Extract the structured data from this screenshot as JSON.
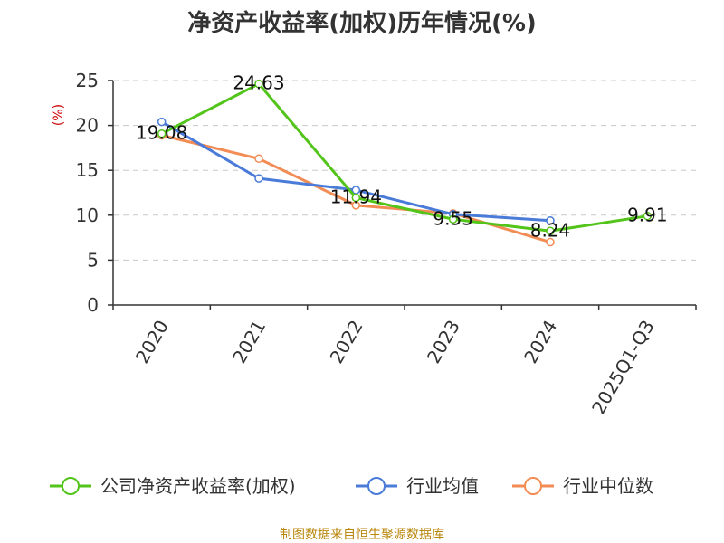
{
  "chart_data": {
    "type": "line",
    "title": "净资产收益率(加权)历年情况(%)",
    "ylabel": "(%)",
    "categories": [
      "2020",
      "2021",
      "2022",
      "2023",
      "2024",
      "2025Q1-Q3"
    ],
    "ylim": [
      0,
      25
    ],
    "yticks": [
      0,
      5,
      10,
      15,
      20,
      25
    ],
    "grid": true,
    "legend_position": "bottom",
    "series": [
      {
        "name": "公司净资产收益率(加权)",
        "color": "#52c41a",
        "values": [
          19.08,
          24.63,
          11.94,
          9.55,
          8.24,
          9.91
        ],
        "labels": [
          "19.08",
          "24.63",
          "11.94",
          "9.55",
          "8.24",
          "9.91"
        ]
      },
      {
        "name": "行业均值",
        "color": "#4a7bd8",
        "values": [
          20.4,
          14.1,
          12.8,
          10.1,
          9.4,
          null
        ]
      },
      {
        "name": "行业中位数",
        "color": "#f28c54",
        "values": [
          18.9,
          16.3,
          11.1,
          10.2,
          7.0,
          null
        ]
      }
    ]
  },
  "source": "制图数据来自恒生聚源数据库"
}
